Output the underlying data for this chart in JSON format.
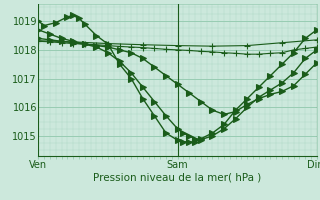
{
  "background_color": "#cce8dc",
  "grid_color": "#99ccb3",
  "line_color": "#1a5c1a",
  "title": "Pression niveau de la mer( hPa )",
  "ylim": [
    1014.3,
    1019.6
  ],
  "yticks": [
    1015,
    1016,
    1017,
    1018,
    1019
  ],
  "xlim": [
    0,
    48
  ],
  "xtick_positions": [
    0,
    24,
    48
  ],
  "xtick_labels": [
    "Ven",
    "Sam",
    "Dim"
  ],
  "series": [
    {
      "x": [
        0,
        1,
        3,
        5,
        6,
        7,
        8,
        10,
        12,
        14,
        16,
        18,
        20,
        22,
        24,
        25,
        26,
        27,
        28,
        30,
        32,
        34,
        36,
        38,
        40,
        42,
        44,
        46,
        48
      ],
      "y": [
        1019.0,
        1018.85,
        1018.95,
        1019.15,
        1019.2,
        1019.1,
        1018.9,
        1018.5,
        1018.2,
        1017.5,
        1017.0,
        1016.3,
        1015.7,
        1015.1,
        1014.85,
        1014.8,
        1014.78,
        1014.8,
        1014.9,
        1015.1,
        1015.4,
        1015.9,
        1016.3,
        1016.7,
        1017.1,
        1017.5,
        1017.9,
        1018.4,
        1018.7
      ]
    },
    {
      "x": [
        0,
        2,
        4,
        6,
        8,
        10,
        12,
        14,
        16,
        18,
        20,
        22,
        24,
        25,
        26,
        27,
        28,
        30,
        32,
        34,
        36,
        38,
        40,
        42,
        44,
        46,
        48
      ],
      "y": [
        1018.7,
        1018.55,
        1018.4,
        1018.3,
        1018.2,
        1018.1,
        1017.9,
        1017.6,
        1017.2,
        1016.7,
        1016.2,
        1015.7,
        1015.25,
        1015.1,
        1015.0,
        1014.9,
        1014.87,
        1015.0,
        1015.25,
        1015.6,
        1016.0,
        1016.35,
        1016.6,
        1016.85,
        1017.2,
        1017.7,
        1018.0
      ]
    },
    {
      "x": [
        0,
        2,
        4,
        6,
        8,
        10,
        12,
        14,
        16,
        18,
        20,
        22,
        24,
        26,
        28,
        30,
        32,
        34,
        36,
        38,
        40,
        42,
        44,
        46,
        48
      ],
      "y": [
        1018.4,
        1018.35,
        1018.3,
        1018.25,
        1018.2,
        1018.15,
        1018.1,
        1018.0,
        1017.9,
        1017.7,
        1017.4,
        1017.1,
        1016.8,
        1016.5,
        1016.2,
        1015.9,
        1015.75,
        1015.85,
        1016.1,
        1016.3,
        1016.45,
        1016.55,
        1016.75,
        1017.15,
        1017.55
      ]
    },
    {
      "x": [
        0,
        2,
        4,
        6,
        8,
        10,
        12,
        14,
        16,
        18,
        20,
        22,
        24,
        26,
        28,
        30,
        32,
        34,
        36,
        38,
        40,
        42,
        44,
        46,
        48
      ],
      "y": [
        1018.3,
        1018.28,
        1018.25,
        1018.22,
        1018.2,
        1018.18,
        1018.15,
        1018.12,
        1018.1,
        1018.08,
        1018.05,
        1018.02,
        1018.0,
        1017.98,
        1017.95,
        1017.93,
        1017.9,
        1017.88,
        1017.85,
        1017.85,
        1017.88,
        1017.9,
        1018.0,
        1018.05,
        1018.1
      ]
    },
    {
      "x": [
        0,
        6,
        12,
        18,
        24,
        30,
        36,
        42,
        48
      ],
      "y": [
        1018.32,
        1018.28,
        1018.22,
        1018.18,
        1018.15,
        1018.13,
        1018.15,
        1018.25,
        1018.35
      ]
    }
  ]
}
